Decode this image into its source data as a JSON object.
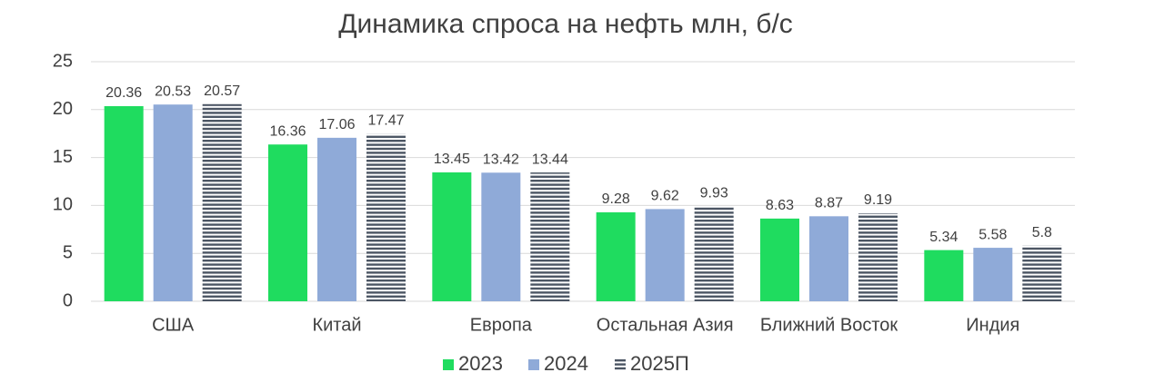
{
  "chart_data": {
    "type": "bar",
    "title": "Динамика спроса на нефть млн, б/с",
    "categories": [
      "США",
      "Китай",
      "Европа",
      "Остальная Азия",
      "Ближний Восток",
      "Индия"
    ],
    "series": [
      {
        "name": "2023",
        "color": "#1fdc5f",
        "values": [
          20.36,
          16.36,
          13.45,
          9.28,
          8.63,
          5.34
        ]
      },
      {
        "name": "2024",
        "color": "#8faad8",
        "values": [
          20.53,
          17.06,
          13.42,
          9.62,
          8.87,
          5.58
        ]
      },
      {
        "name": "2025П",
        "color": "#4b5563",
        "pattern": "horizontal-stripes",
        "values": [
          20.57,
          17.47,
          13.44,
          9.93,
          9.19,
          5.8
        ]
      }
    ],
    "ylim": [
      0,
      25
    ],
    "yticks": [
      0,
      5,
      10,
      15,
      20,
      25
    ],
    "grid": true,
    "legend": "bottom"
  }
}
